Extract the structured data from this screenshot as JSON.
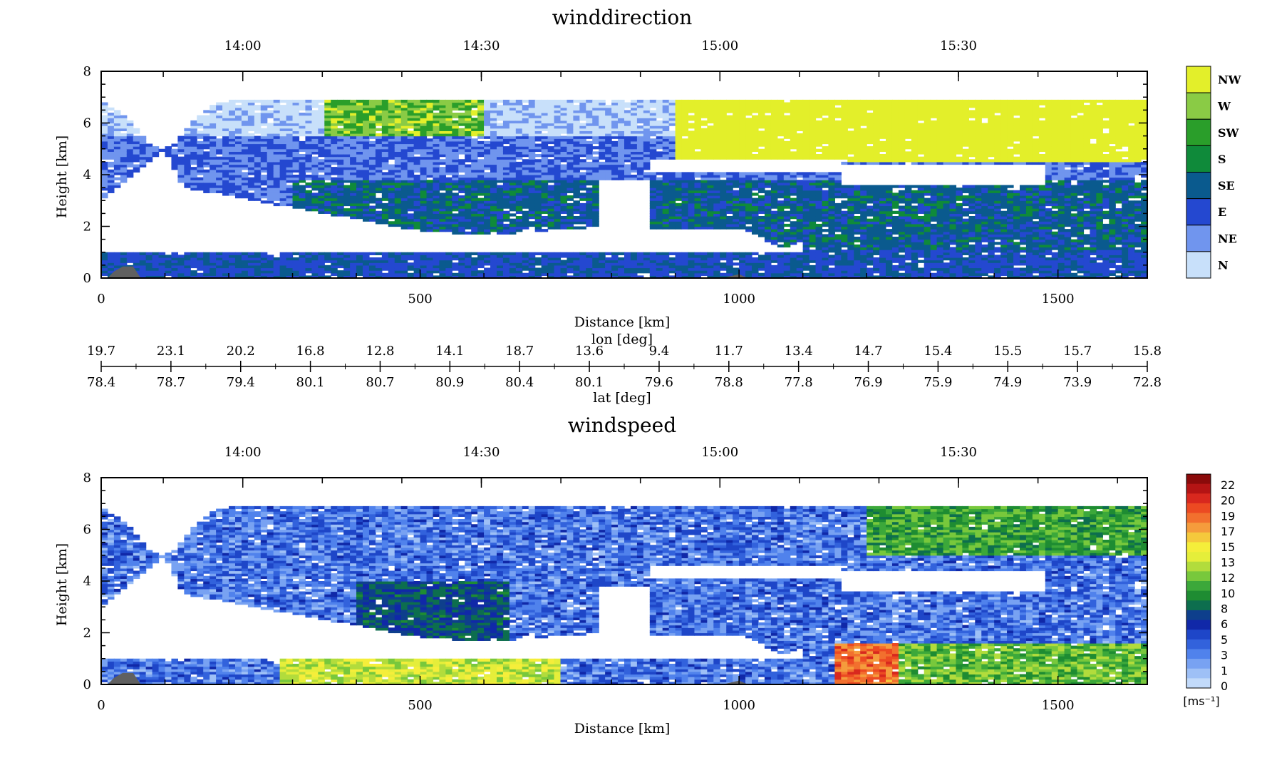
{
  "chart_data": [
    {
      "type": "heatmap",
      "title": "winddirection",
      "xlabel": "Distance [km]",
      "ylabel": "Height [km]",
      "xlim": [
        0,
        1640
      ],
      "ylim": [
        0,
        8
      ],
      "x_ticks": [
        0,
        500,
        1000,
        1500
      ],
      "y_ticks": [
        0,
        2,
        4,
        6,
        8
      ],
      "time_ticks": [
        "14:00",
        "14:30",
        "15:00",
        "15:30"
      ],
      "time_tick_positions_km": [
        222,
        596,
        970,
        1344
      ],
      "colorbar": {
        "categories": [
          "NW",
          "W",
          "SW",
          "S",
          "SE",
          "E",
          "NE",
          "N"
        ],
        "colors": [
          "#e3ef2a",
          "#8acb45",
          "#2a9e2a",
          "#0f8a3a",
          "#0a5a8e",
          "#2448d0",
          "#7095ee",
          "#c8e0fa"
        ]
      },
      "ground_color": "#606060"
    },
    {
      "type": "heatmap",
      "title": "windspeed",
      "xlabel": "Distance [km]",
      "ylabel": "Height [km]",
      "xlim": [
        0,
        1640
      ],
      "ylim": [
        0,
        8
      ],
      "x_ticks": [
        0,
        500,
        1000,
        1500
      ],
      "y_ticks": [
        0,
        2,
        4,
        6,
        8
      ],
      "time_ticks": [
        "14:00",
        "14:30",
        "15:00",
        "15:30"
      ],
      "time_tick_positions_km": [
        222,
        596,
        970,
        1344
      ],
      "colorbar": {
        "unit": "[ms⁻¹]",
        "labels": [
          "22",
          "20",
          "19",
          "17",
          "15",
          "13",
          "12",
          "10",
          "8",
          "6",
          "5",
          "3",
          "1",
          "0"
        ],
        "colors": [
          "#8a0a0a",
          "#b41414",
          "#d8281e",
          "#ec4a22",
          "#f2702e",
          "#f59c3c",
          "#f5c93c",
          "#f5ee3a",
          "#e5ee3a",
          "#b2dc3c",
          "#78c83c",
          "#3ca83a",
          "#1e8c32",
          "#0d6e4e",
          "#0e3f8c",
          "#1028a8",
          "#1e46c8",
          "#3262dc",
          "#5082ec",
          "#78a2f2",
          "#9ec0f6",
          "#c2dafa"
        ]
      }
    }
  ],
  "coordinate_axis": {
    "lon_label": "lon [deg]",
    "lat_label": "lat [deg]",
    "lon_values": [
      "19.7",
      "23.1",
      "20.2",
      "16.8",
      "12.8",
      "14.1",
      "18.7",
      "13.6",
      "9.4",
      "11.7",
      "13.4",
      "14.7",
      "15.4",
      "15.5",
      "15.7",
      "15.8"
    ],
    "lat_values": [
      "78.4",
      "78.7",
      "79.4",
      "80.1",
      "80.7",
      "80.9",
      "80.4",
      "80.1",
      "79.6",
      "78.8",
      "77.8",
      "76.9",
      "75.9",
      "74.9",
      "73.9",
      "72.8"
    ]
  }
}
